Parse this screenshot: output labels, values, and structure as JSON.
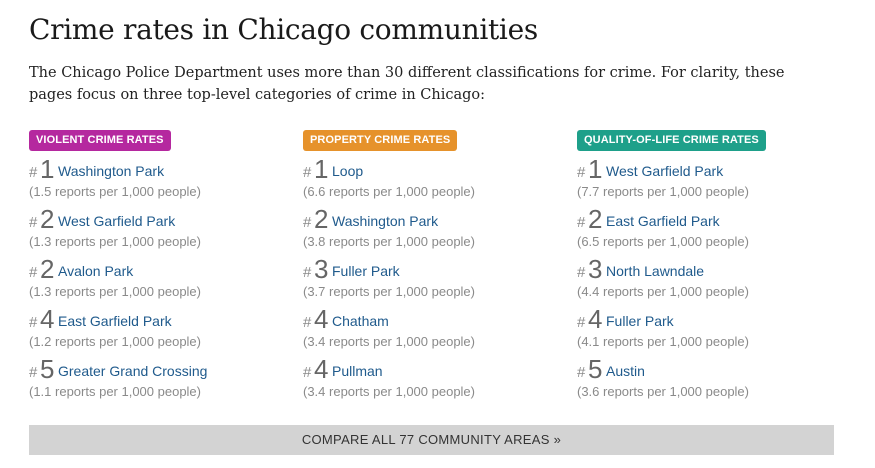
{
  "page": {
    "title": "Crime rates in Chicago communities",
    "intro": "The Chicago Police Department uses more than 30 different classifications for crime. For clarity, these pages focus on three top-level categories of crime in Chicago:"
  },
  "columns": [
    {
      "label": "VIOLENT CRIME RATES",
      "color": "#b5289f",
      "entries": [
        {
          "hash": "#",
          "rank": "1",
          "name": "Washington Park",
          "rate": "(1.5 reports per 1,000 people)"
        },
        {
          "hash": "#",
          "rank": "2",
          "name": "West Garfield Park",
          "rate": "(1.3 reports per 1,000 people)"
        },
        {
          "hash": "#",
          "rank": "2",
          "name": "Avalon Park",
          "rate": "(1.3 reports per 1,000 people)"
        },
        {
          "hash": "#",
          "rank": "4",
          "name": "East Garfield Park",
          "rate": "(1.2 reports per 1,000 people)"
        },
        {
          "hash": "#",
          "rank": "5",
          "name": "Greater Grand Crossing",
          "rate": "(1.1 reports per 1,000 people)"
        }
      ]
    },
    {
      "label": "PROPERTY CRIME RATES",
      "color": "#e6922b",
      "entries": [
        {
          "hash": "#",
          "rank": "1",
          "name": "Loop",
          "rate": "(6.6 reports per 1,000 people)"
        },
        {
          "hash": "#",
          "rank": "2",
          "name": "Washington Park",
          "rate": "(3.8 reports per 1,000 people)"
        },
        {
          "hash": "#",
          "rank": "3",
          "name": "Fuller Park",
          "rate": "(3.7 reports per 1,000 people)"
        },
        {
          "hash": "#",
          "rank": "4",
          "name": "Chatham",
          "rate": "(3.4 reports per 1,000 people)"
        },
        {
          "hash": "#",
          "rank": "4",
          "name": "Pullman",
          "rate": "(3.4 reports per 1,000 people)"
        }
      ]
    },
    {
      "label": "QUALITY-OF-LIFE CRIME RATES",
      "color": "#1ea08a",
      "entries": [
        {
          "hash": "#",
          "rank": "1",
          "name": "West Garfield Park",
          "rate": "(7.7 reports per 1,000 people)"
        },
        {
          "hash": "#",
          "rank": "2",
          "name": "East Garfield Park",
          "rate": "(6.5 reports per 1,000 people)"
        },
        {
          "hash": "#",
          "rank": "3",
          "name": "North Lawndale",
          "rate": "(4.4 reports per 1,000 people)"
        },
        {
          "hash": "#",
          "rank": "4",
          "name": "Fuller Park",
          "rate": "(4.1 reports per 1,000 people)"
        },
        {
          "hash": "#",
          "rank": "5",
          "name": "Austin",
          "rate": "(3.6 reports per 1,000 people)"
        }
      ]
    }
  ],
  "compare_button": "COMPARE ALL 77 COMMUNITY AREAS »"
}
